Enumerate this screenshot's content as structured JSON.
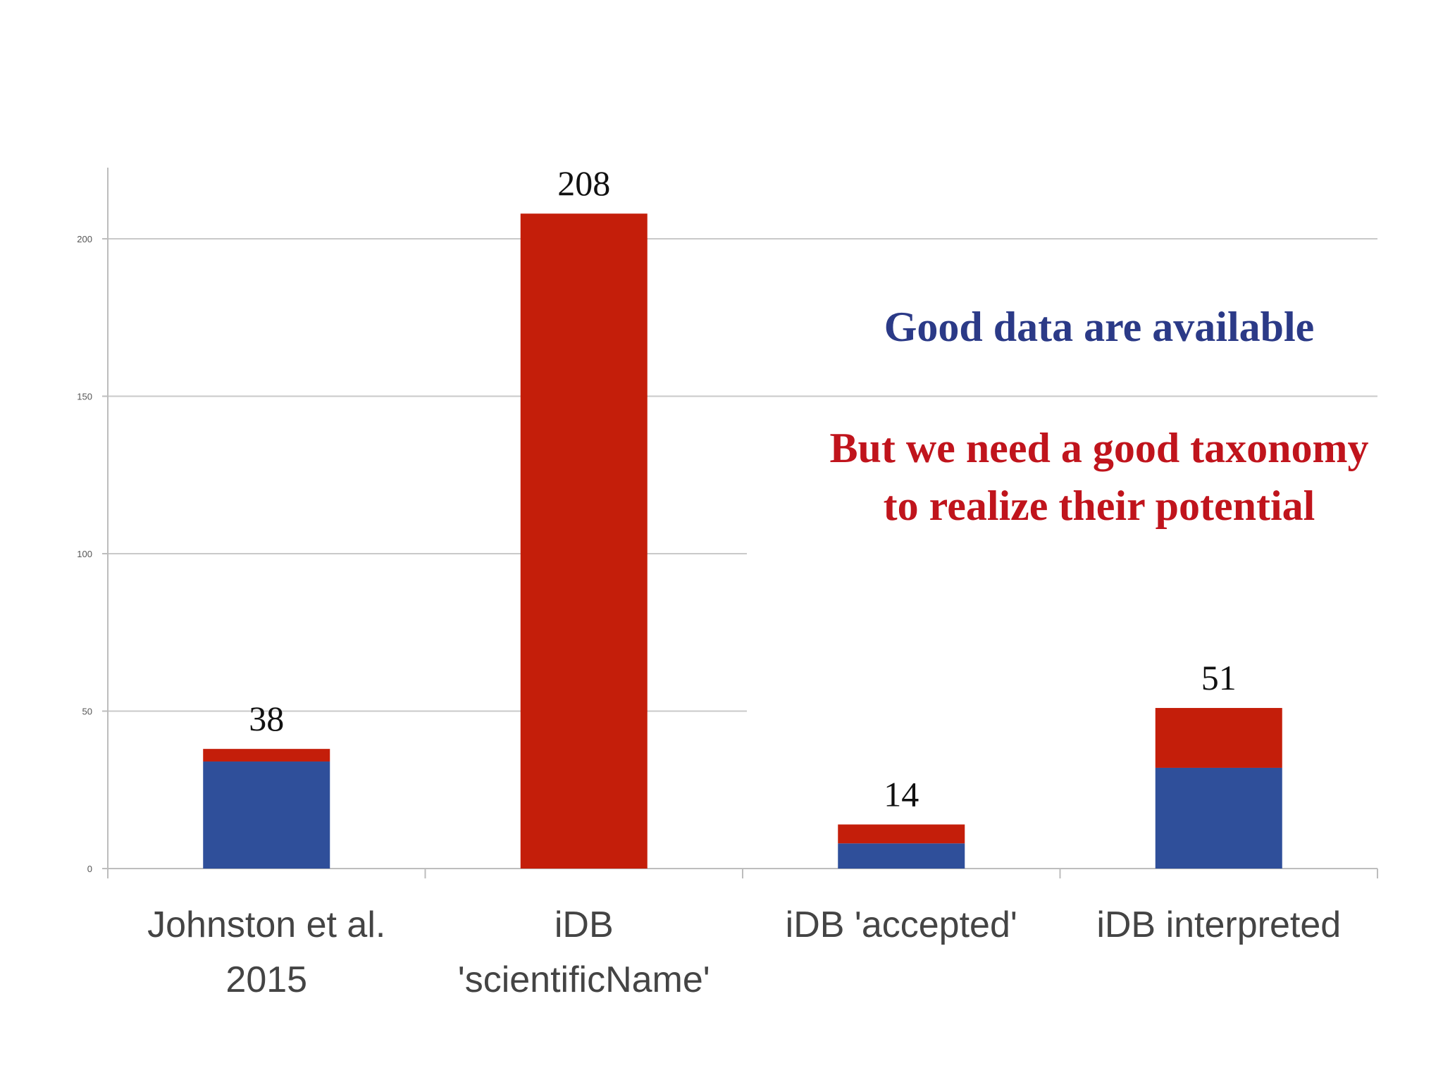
{
  "chart_data": {
    "type": "bar",
    "stacked": true,
    "categories": [
      [
        "Johnston et al.",
        "2015"
      ],
      [
        "iDB",
        "'scientificName'"
      ],
      [
        "iDB 'accepted'"
      ],
      [
        "iDB interpreted"
      ]
    ],
    "series": [
      {
        "color": "#2f4f9a",
        "values": [
          34,
          0,
          8,
          32
        ]
      },
      {
        "color": "#c41e0a",
        "values": [
          4,
          208,
          6,
          19
        ]
      }
    ],
    "totals": [
      "38",
      "208",
      "14",
      "51"
    ],
    "yticks": [
      0,
      50,
      100,
      150,
      200
    ],
    "ylim": [
      0,
      220
    ],
    "grid": true
  },
  "callouts": {
    "good": "Good data are available",
    "but_line1": "But we need a good taxonomy",
    "but_line2": "to realize their potential"
  }
}
